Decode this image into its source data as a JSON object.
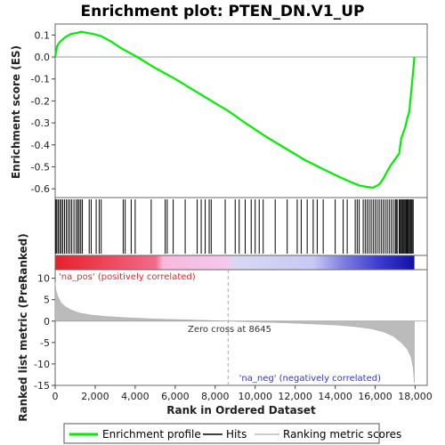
{
  "chart_data": {
    "type": "line",
    "title": "Enrichment plot: PTEN_DN.V1_UP",
    "xlabel": "Rank in Ordered Dataset",
    "x_ticks": [
      0,
      2000,
      4000,
      6000,
      8000,
      10000,
      12000,
      14000,
      16000,
      18000
    ],
    "x_tick_labels": [
      "0",
      "2,000",
      "4,000",
      "6,000",
      "8,000",
      "10,000",
      "12,000",
      "14,000",
      "16,000",
      "18,000"
    ],
    "xlim": [
      0,
      18600
    ],
    "n_genes": 17960,
    "es_panel": {
      "ylabel": "Enrichment score (ES)",
      "ylim": [
        -0.64,
        0.15
      ],
      "y_ticks": [
        -0.6,
        -0.5,
        -0.4,
        -0.3,
        -0.2,
        -0.1,
        0.0,
        0.1
      ],
      "y_tick_labels": [
        "-0.6",
        "-0.5",
        "-0.4",
        "-0.3",
        "-0.2",
        "-0.1",
        "0.0",
        "0.1"
      ],
      "line_color": "#00ee00",
      "series": [
        {
          "name": "Enrichment profile",
          "x": [
            0,
            100,
            250,
            500,
            800,
            1100,
            1300,
            1600,
            1900,
            2300,
            2800,
            3300,
            3800,
            4100,
            5000,
            6000,
            7000,
            8000,
            8645,
            9500,
            10500,
            11500,
            12500,
            13500,
            14300,
            14800,
            15200,
            15500,
            15900,
            16200,
            16400,
            16600,
            16800,
            17000,
            17200,
            17300,
            17500,
            17600,
            17700,
            17800,
            17900,
            17960
          ],
          "y": [
            0.0,
            0.05,
            0.07,
            0.09,
            0.105,
            0.11,
            0.115,
            0.11,
            0.105,
            0.095,
            0.07,
            0.04,
            0.015,
            0.0,
            -0.05,
            -0.1,
            -0.155,
            -0.21,
            -0.245,
            -0.3,
            -0.36,
            -0.415,
            -0.47,
            -0.515,
            -0.55,
            -0.57,
            -0.585,
            -0.59,
            -0.595,
            -0.58,
            -0.555,
            -0.52,
            -0.49,
            -0.465,
            -0.44,
            -0.37,
            -0.32,
            -0.28,
            -0.25,
            -0.16,
            -0.06,
            0.0
          ]
        }
      ]
    },
    "hits": {
      "name": "Hits",
      "positions": [
        30,
        80,
        150,
        230,
        300,
        380,
        470,
        560,
        650,
        740,
        830,
        940,
        1050,
        1130,
        1200,
        1280,
        1360,
        1700,
        1800,
        2050,
        2200,
        2300,
        3400,
        3500,
        3800,
        4000,
        4800,
        5500,
        5600,
        5900,
        6500,
        7100,
        7300,
        7500,
        7700,
        7800,
        8500,
        9000,
        9200,
        9500,
        9800,
        10000,
        10200,
        10400,
        11000,
        11600,
        12100,
        12300,
        12600,
        12900,
        13100,
        13400,
        14000,
        14400,
        14600,
        15000,
        15100,
        15200,
        15400,
        15500,
        15600,
        15700,
        15800,
        15900,
        16000,
        16100,
        16200,
        16300,
        16400,
        16500,
        16600,
        16700,
        16800,
        16900,
        17000,
        17050,
        17100,
        17200,
        17250,
        17300,
        17350,
        17400,
        17450,
        17500,
        17550,
        17600,
        17650,
        17700,
        17750,
        17800,
        17850,
        17900
      ]
    },
    "metric_panel": {
      "ylabel": "Ranked list metric (PreRanked)",
      "ylim": [
        -15,
        12
      ],
      "y_ticks": [
        -15,
        -10,
        -5,
        0,
        5,
        10
      ],
      "y_tick_labels": [
        "-15",
        "-10",
        "-5",
        "0",
        "5",
        "10"
      ],
      "fill_color": "#bbbbbb",
      "series": [
        {
          "name": "Ranking metric scores",
          "x": [
            0,
            50,
            150,
            300,
            500,
            800,
            1200,
            1800,
            2500,
            3500,
            5000,
            6500,
            8000,
            8645,
            10000,
            11500,
            13000,
            14000,
            15000,
            15800,
            16400,
            16900,
            17300,
            17600,
            17800,
            17900,
            17960
          ],
          "y": [
            9,
            7,
            5.5,
            4.3,
            3.4,
            2.6,
            1.9,
            1.4,
            1.1,
            0.8,
            0.5,
            0.3,
            0.1,
            0.0,
            -0.2,
            -0.4,
            -0.7,
            -0.9,
            -1.3,
            -1.8,
            -2.5,
            -3.5,
            -5.0,
            -6.5,
            -8.5,
            -11.0,
            -14.5
          ]
        }
      ],
      "zero_cross_label": "Zero cross at 8645",
      "zero_cross": 8645,
      "pos_label": "'na_pos' (positively correlated)",
      "neg_label": "'na_neg' (negatively correlated)",
      "pos_color": "#ee2222",
      "neg_color": "#3333cc"
    },
    "legend": {
      "position": "bottom",
      "items": [
        {
          "label": "Enrichment profile",
          "color": "#00ee00",
          "style": "line"
        },
        {
          "label": "Hits",
          "color": "#000000",
          "style": "line"
        },
        {
          "label": "Ranking metric scores",
          "color": "#bbbbbb",
          "style": "line"
        }
      ]
    }
  }
}
